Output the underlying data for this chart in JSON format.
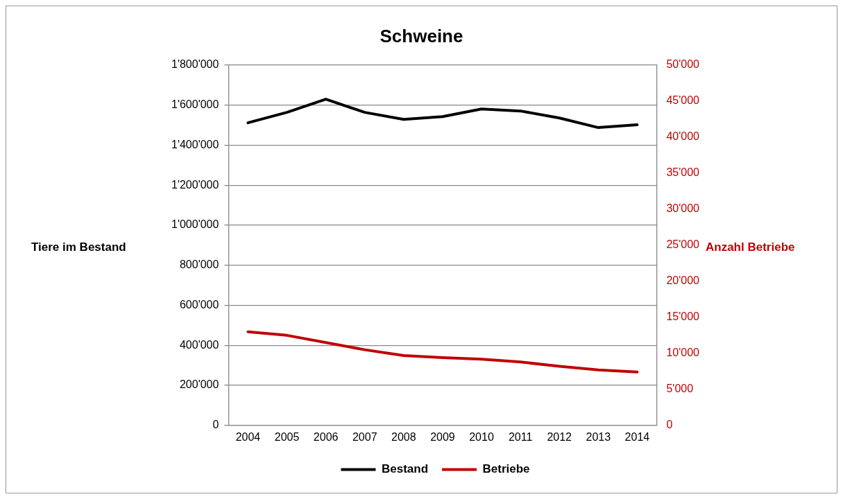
{
  "chart_data": {
    "type": "line",
    "title": "Schweine",
    "ylabel": "Tiere im Bestand",
    "y2label": "Anzahl Betriebe",
    "categories": [
      "2004",
      "2005",
      "2006",
      "2007",
      "2008",
      "2009",
      "2010",
      "2011",
      "2012",
      "2013",
      "2014"
    ],
    "series": [
      {
        "name": "Bestand",
        "color": "#000000",
        "values": [
          1512000,
          1564000,
          1630000,
          1564000,
          1529000,
          1543000,
          1581000,
          1571000,
          1536000,
          1488000,
          1502000
        ]
      },
      {
        "name": "Betriebe",
        "color": "#c00000",
        "axis": "y2",
        "values": [
          13000,
          12500,
          11500,
          10500,
          9700,
          9400,
          9200,
          8800,
          8200,
          7700,
          7400
        ]
      }
    ],
    "ylim": [
      0,
      1800000
    ],
    "yticks": [
      {
        "value": 0,
        "label": "0"
      },
      {
        "value": 200000,
        "label": "200'000"
      },
      {
        "value": 400000,
        "label": "400'000"
      },
      {
        "value": 600000,
        "label": "600'000"
      },
      {
        "value": 800000,
        "label": "800'000"
      },
      {
        "value": 1000000,
        "label": "1'000'000"
      },
      {
        "value": 1200000,
        "label": "1'200'000"
      },
      {
        "value": 1400000,
        "label": "1'400'000"
      },
      {
        "value": 1600000,
        "label": "1'600'000"
      },
      {
        "value": 1800000,
        "label": "1'800'000"
      }
    ],
    "y2lim": [
      0,
      50000
    ],
    "y2ticks": [
      0,
      {
        "value": 5000,
        "label": "5'000"
      },
      {
        "value": 10000,
        "label": "10'000"
      },
      {
        "value": 15000,
        "label": "15'000"
      },
      {
        "value": 20000,
        "label": "20'000"
      },
      {
        "value": 25000,
        "label": "25'000"
      },
      {
        "value": 30000,
        "label": "30'000"
      },
      {
        "value": 35000,
        "label": "35'000"
      },
      {
        "value": 40000,
        "label": "40'000"
      },
      {
        "value": 45000,
        "label": "45'000"
      },
      {
        "value": 50000,
        "label": "50'000"
      }
    ],
    "grid": "y",
    "legend": "bottom",
    "marker": "none",
    "line_style": "solid"
  }
}
